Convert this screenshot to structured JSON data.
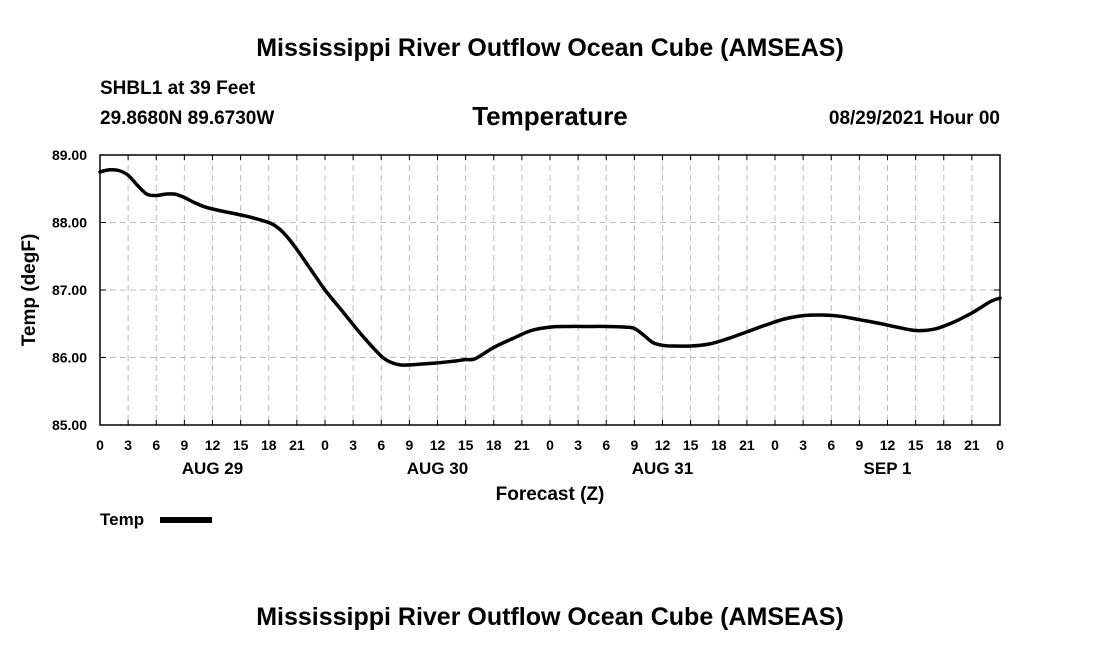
{
  "header": {
    "title": "Mississippi River Outflow Ocean Cube (AMSEAS)",
    "station": "SHBL1 at 39 Feet",
    "coords": "29.8680N  89.6730W",
    "variable": "Temperature",
    "datetime": "08/29/2021 Hour 00"
  },
  "footer": {
    "title": "Mississippi River Outflow Ocean Cube (AMSEAS)"
  },
  "chart_data": {
    "type": "line",
    "title": "Temperature",
    "xlabel": "Forecast (Z)",
    "ylabel": "Temp (degF)",
    "xlim": [
      0,
      96
    ],
    "ylim": [
      85,
      89
    ],
    "grid": true,
    "y_ticks": [
      85,
      86,
      87,
      88,
      89
    ],
    "y_tick_labels": [
      "85.00",
      "86.00",
      "87.00",
      "88.00",
      "89.00"
    ],
    "x_ticks": [
      0,
      3,
      6,
      9,
      12,
      15,
      18,
      21,
      24,
      27,
      30,
      33,
      36,
      39,
      42,
      45,
      48,
      51,
      54,
      57,
      60,
      63,
      66,
      69,
      72,
      75,
      78,
      81,
      84,
      87,
      90,
      93,
      96
    ],
    "x_tick_labels": [
      "0",
      "3",
      "6",
      "9",
      "12",
      "15",
      "18",
      "21",
      "0",
      "3",
      "6",
      "9",
      "12",
      "15",
      "18",
      "21",
      "0",
      "3",
      "6",
      "9",
      "12",
      "15",
      "18",
      "21",
      "0",
      "3",
      "6",
      "9",
      "12",
      "15",
      "18",
      "21",
      "0"
    ],
    "date_labels": [
      {
        "label": "AUG 29",
        "hour": 12
      },
      {
        "label": "AUG 30",
        "hour": 36
      },
      {
        "label": "AUG 31",
        "hour": 60
      },
      {
        "label": "SEP 1",
        "hour": 84
      }
    ],
    "legend": {
      "label": "Temp",
      "placement": "bottom-left"
    },
    "series": [
      {
        "name": "Temp",
        "color": "#000000",
        "x": [
          0,
          1,
          2,
          3,
          4,
          5,
          6,
          7,
          8,
          9,
          10,
          11,
          12,
          14,
          16,
          18,
          19,
          20,
          21,
          22,
          23,
          24,
          26,
          28,
          30,
          31,
          32,
          33,
          34,
          36,
          38,
          39,
          40,
          42,
          44,
          46,
          48,
          50,
          52,
          54,
          56,
          57,
          58,
          59,
          60,
          61,
          63,
          65,
          67,
          69,
          71,
          73,
          75,
          77,
          79,
          81,
          83,
          84,
          85,
          87,
          89,
          91,
          93,
          95,
          96
        ],
        "values": [
          88.75,
          88.78,
          88.77,
          88.7,
          88.55,
          88.42,
          88.4,
          88.42,
          88.42,
          88.37,
          88.3,
          88.24,
          88.2,
          88.14,
          88.08,
          88.0,
          87.92,
          87.78,
          87.6,
          87.4,
          87.2,
          87.0,
          86.66,
          86.32,
          86.02,
          85.93,
          85.89,
          85.89,
          85.9,
          85.92,
          85.95,
          85.97,
          85.98,
          86.15,
          86.28,
          86.4,
          86.45,
          86.46,
          86.46,
          86.46,
          86.45,
          86.43,
          86.33,
          86.22,
          86.18,
          86.17,
          86.17,
          86.2,
          86.28,
          86.38,
          86.48,
          86.57,
          86.62,
          86.63,
          86.61,
          86.56,
          86.51,
          86.48,
          86.45,
          86.4,
          86.42,
          86.52,
          86.66,
          86.83,
          86.88
        ]
      }
    ]
  }
}
